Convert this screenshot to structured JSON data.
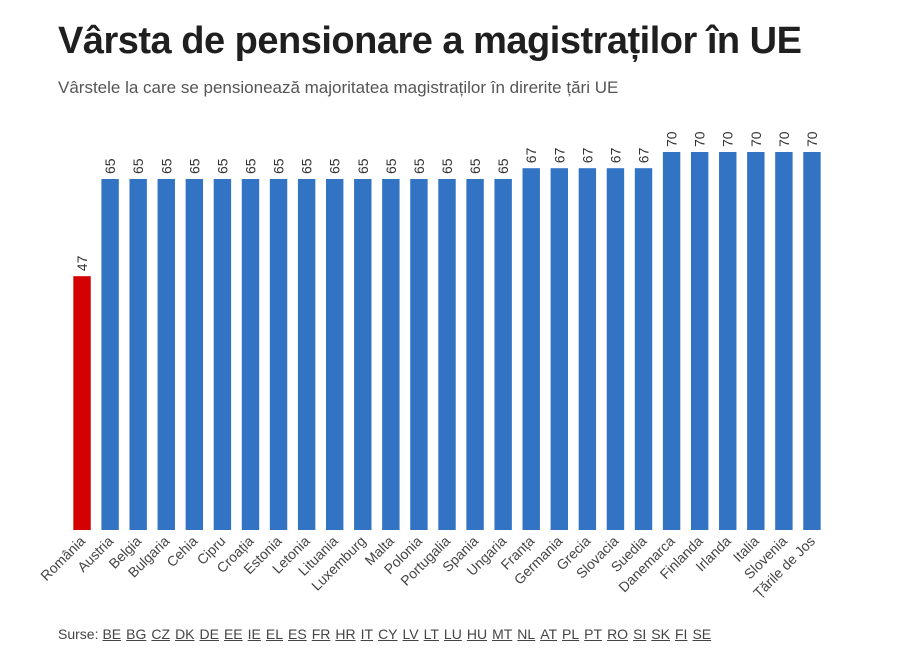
{
  "title": "Vârsta de pensionare a magistraților în UE",
  "subtitle": "Vârstele la care se pensionează majoritatea magistraților în direrite țări UE",
  "sources_label": "Surse:",
  "sources": [
    "BE",
    "BG",
    "CZ",
    "DK",
    "DE",
    "EE",
    "IE",
    "EL",
    "ES",
    "FR",
    "HR",
    "IT",
    "CY",
    "LV",
    "LT",
    "LU",
    "HU",
    "MT",
    "NL",
    "AT",
    "PL",
    "PT",
    "RO",
    "SI",
    "SK",
    "FI",
    "SE"
  ],
  "colors": {
    "highlight": "#d40000",
    "bar": "#3273c4"
  },
  "chart_data": {
    "type": "bar",
    "categories": [
      "România",
      "Austria",
      "Belgia",
      "Bulgaria",
      "Cehia",
      "Cipru",
      "Croația",
      "Estonia",
      "Letonia",
      "Lituania",
      "Luxemburg",
      "Malta",
      "Polonia",
      "Portugalia",
      "Spania",
      "Ungaria",
      "Franța",
      "Germania",
      "Grecia",
      "Slovacia",
      "Suedia",
      "Danemarca",
      "Finlanda",
      "Irlanda",
      "Italia",
      "Slovenia",
      "Țările de Jos"
    ],
    "values": [
      47,
      65,
      65,
      65,
      65,
      65,
      65,
      65,
      65,
      65,
      65,
      65,
      65,
      65,
      65,
      65,
      67,
      67,
      67,
      67,
      67,
      70,
      70,
      70,
      70,
      70,
      70
    ],
    "highlight_category": "România",
    "ylim": [
      0,
      70
    ],
    "grid": false,
    "data_labels": true
  }
}
